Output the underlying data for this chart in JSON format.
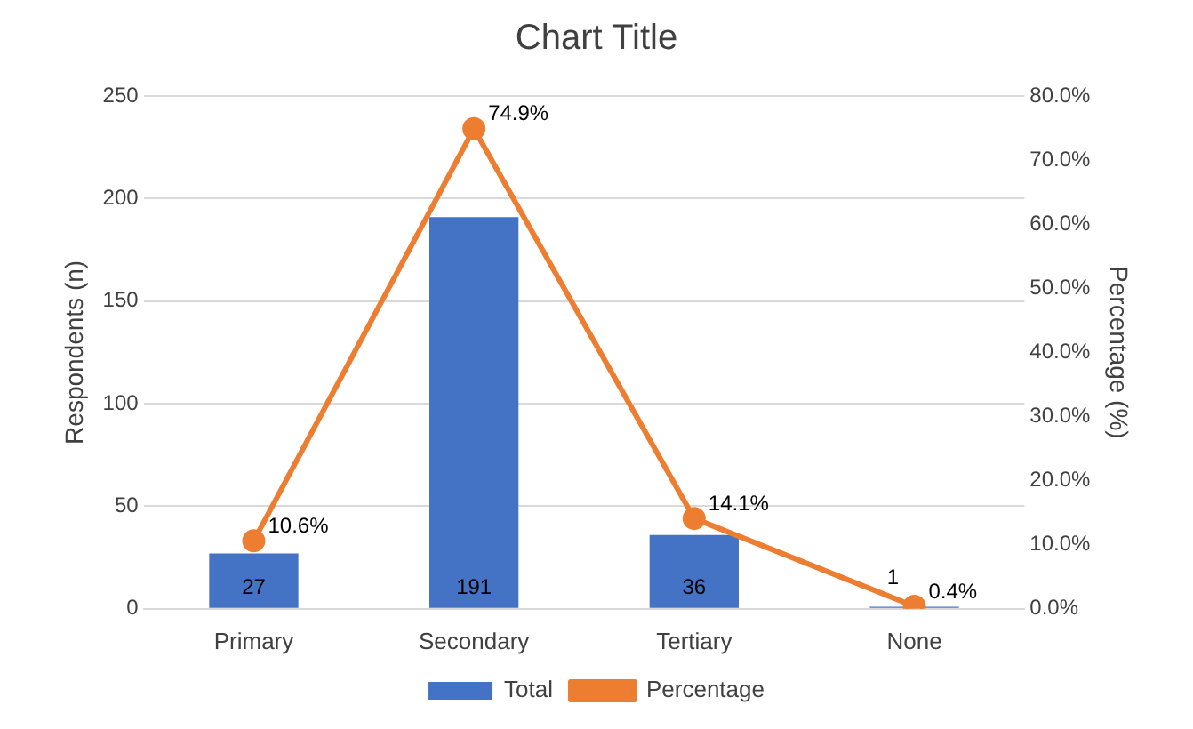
{
  "chart_data": {
    "type": "bar",
    "title": "Chart Title",
    "ylabel": "Respondents (n)",
    "y2label": "Percentage (%)",
    "categories": [
      "Primary",
      "Secondary",
      "Tertiary",
      "None"
    ],
    "series": [
      {
        "name": "Total",
        "color": "#4472c4",
        "values": [
          27,
          191,
          36,
          1
        ],
        "value_labels": [
          "27",
          "191",
          "36",
          "1"
        ]
      },
      {
        "name": "Percentage",
        "type": "line",
        "axis": "y2",
        "color": "#ed7d31",
        "values": [
          10.6,
          74.9,
          14.1,
          0.4
        ],
        "value_labels": [
          "10.6%",
          "74.9%",
          "14.1%",
          "0.4%"
        ]
      }
    ],
    "ylim": [
      0,
      250
    ],
    "yticks": [
      0,
      50,
      100,
      150,
      200,
      250
    ],
    "y2lim": [
      0,
      80
    ],
    "y2ticks": [
      {
        "value": 0,
        "label": "0.0%"
      },
      {
        "value": 10,
        "label": "10.0%"
      },
      {
        "value": 20,
        "label": "20.0%"
      },
      {
        "value": 30,
        "label": "30.0%"
      },
      {
        "value": 40,
        "label": "40.0%"
      },
      {
        "value": 50,
        "label": "50.0%"
      },
      {
        "value": 60,
        "label": "60.0%"
      },
      {
        "value": 70,
        "label": "70.0%"
      },
      {
        "value": 80,
        "label": "80.0%"
      }
    ],
    "grid": "y",
    "legend": "bottom",
    "marker": "circle"
  }
}
